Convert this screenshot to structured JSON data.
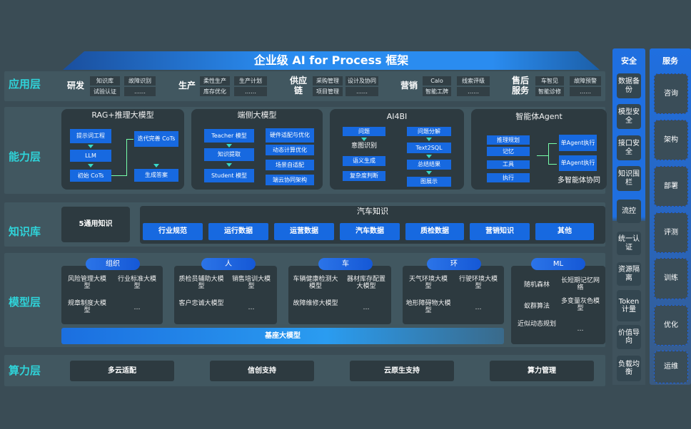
{
  "title": "企业级 AI for Process 框架",
  "layers": {
    "app": "应用层",
    "ability": "能力层",
    "knowledge": "知识库",
    "model": "模型层",
    "compute": "算力层"
  },
  "app": [
    {
      "name": "研发",
      "items": [
        "知识库",
        "试验认证",
        "故障识别",
        "……"
      ]
    },
    {
      "name": "生产",
      "items": [
        "柔性生产",
        "库存优化",
        "生产计划",
        "……"
      ]
    },
    {
      "name": "供应链",
      "items": [
        "采购管理",
        "项目管理",
        "设计及协同",
        "……"
      ]
    },
    {
      "name": "营销",
      "items": [
        "Calo",
        "智能工牌",
        "线索评级",
        "……"
      ]
    },
    {
      "name": "售后服务",
      "items": [
        "车智见",
        "智能诊修",
        "故障预警",
        "……"
      ]
    }
  ],
  "ability": {
    "rag": {
      "title": "RAG+推理大模型",
      "items": [
        "提示词工程",
        "LLM",
        "初始 CoTs",
        "迭代完善 CoTs",
        "生成答案"
      ]
    },
    "edge": {
      "title": "端侧大模型",
      "items": [
        "Teacher 模型",
        "知识提取",
        "Student 模型",
        "硬件适配与优化",
        "动态计算优化",
        "场景自适配",
        "端云协同架构"
      ]
    },
    "bi": {
      "title": "AI4BI",
      "items": [
        "问题",
        "意图识别",
        "语义生成",
        "复杂度判断",
        "问题分解",
        "Text2SQL",
        "总结结果",
        "图展示"
      ]
    },
    "agent": {
      "title": "智能体Agent",
      "items": [
        "推理规划",
        "记忆",
        "工具",
        "执行",
        "单Agent执行",
        "单Agent执行",
        "多智能体协同"
      ]
    }
  },
  "knowledge": {
    "general": "5通用知识",
    "auto_title": "汽车知识",
    "items": [
      "行业规范",
      "运行数据",
      "运营数据",
      "汽车数据",
      "质检数据",
      "营销知识",
      "其他"
    ]
  },
  "model": {
    "groups": [
      {
        "name": "组织",
        "items": [
          "风险管理大模型",
          "行业标准大模型",
          "规章制度大模型",
          "…"
        ]
      },
      {
        "name": "人",
        "items": [
          "质检员辅助大模型",
          "销售培训大模型",
          "客户忠诚大模型",
          "…"
        ]
      },
      {
        "name": "车",
        "items": [
          "车辆健康检测大模型",
          "器材库存配置大模型",
          "故障维修大模型",
          "…"
        ]
      },
      {
        "name": "环",
        "items": [
          "天气环境大模型",
          "行驶环境大模型",
          "地形障碍物大模型",
          "…"
        ]
      },
      {
        "name": "ML",
        "items": [
          "随机森林",
          "长短期记忆网络",
          "蚁群算法",
          "多变量灰色模型",
          "近似动态规划",
          "…"
        ]
      }
    ],
    "base": "基座大模型"
  },
  "compute": [
    "多云适配",
    "信创支持",
    "云原生支持",
    "算力管理"
  ],
  "security": {
    "title": "安全",
    "items": [
      "数据备份",
      "模型安全",
      "接口安全",
      "知识围栏",
      "流控",
      "统一认证",
      "资源隔离",
      "Token计量",
      "价值导向",
      "负载均衡"
    ]
  },
  "service": {
    "title": "服务",
    "items": [
      "咨询",
      "架构",
      "部署",
      "评测",
      "训练",
      "优化",
      "运维"
    ]
  },
  "colors": {
    "accent": "#1769e0",
    "label": "#2fd3d9",
    "background": "#3a4c55"
  }
}
